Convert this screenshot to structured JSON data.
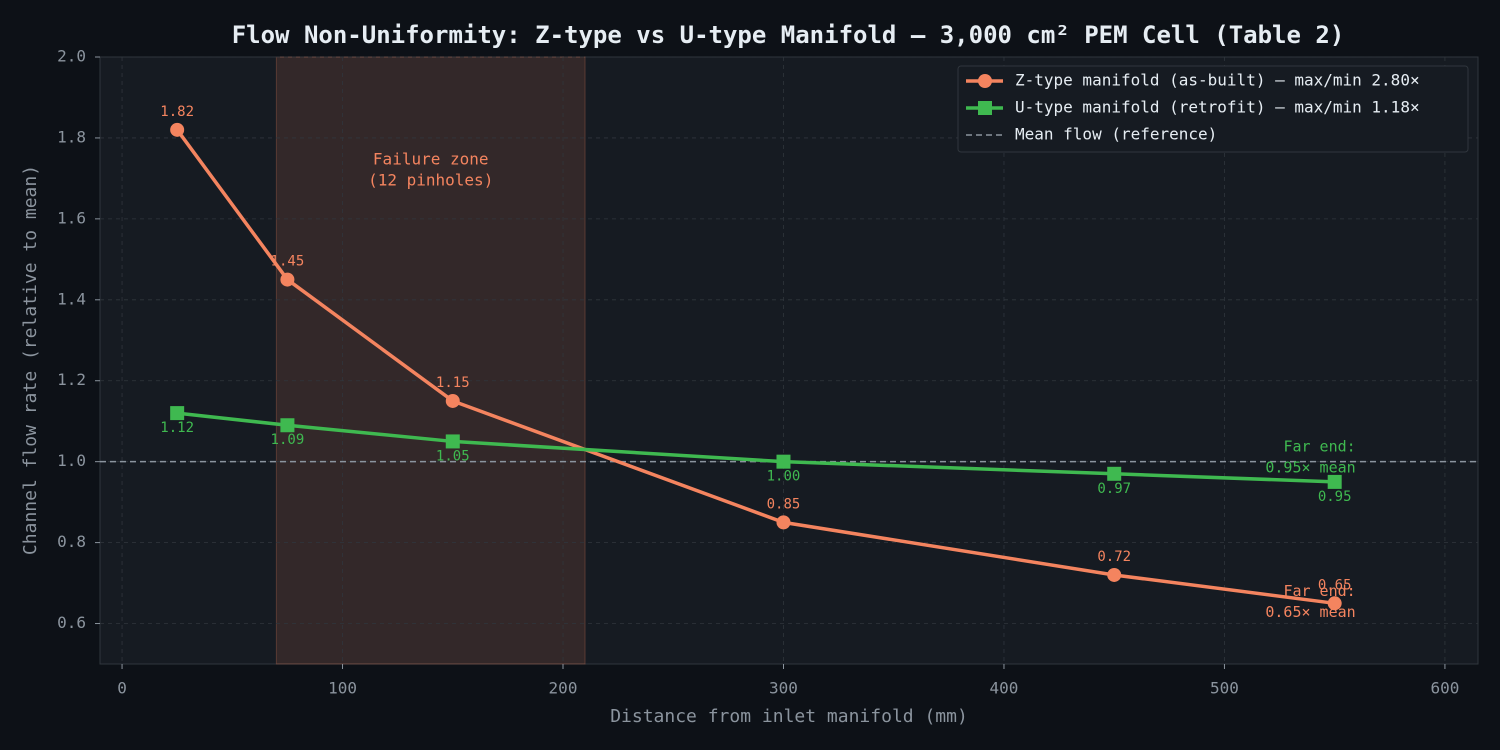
{
  "chart_data": {
    "type": "line",
    "title": "Flow Non-Uniformity: Z-type vs U-type Manifold — 3,000 cm² PEM Cell (Table 2)",
    "x_label": "Distance from inlet manifold (mm)",
    "y_label": "Channel flow rate (relative to mean)",
    "x": [
      25,
      75,
      150,
      300,
      450,
      550
    ],
    "series": [
      {
        "name": "Z-type manifold (as-built) — max/min 2.80×",
        "color": "#f4845f",
        "marker": "circle",
        "values": [
          1.82,
          1.45,
          1.15,
          0.85,
          0.72,
          0.65
        ],
        "annotation": [
          "Far end:",
          "0.65× mean"
        ]
      },
      {
        "name": "U-type manifold (retrofit) — max/min 1.18×",
        "color": "#3fb950",
        "marker": "square",
        "values": [
          1.12,
          1.09,
          1.05,
          1.0,
          0.97,
          0.95
        ],
        "value_labels": [
          "1.12",
          "1.09",
          "1.05",
          "1.00",
          "0.97",
          "0.95"
        ],
        "annotation": [
          "Far end:",
          "0.95× mean"
        ]
      }
    ],
    "reference_line": {
      "value": 1,
      "name": "Mean flow (reference)",
      "color": "#8b949e"
    },
    "shaded_region": {
      "x": [
        70,
        210
      ],
      "label": [
        "Failure zone",
        "(12 pinholes)"
      ],
      "color": "#f4845f"
    },
    "xlim": [
      -10,
      615
    ],
    "ylim": [
      0.5,
      2.0
    ],
    "xticks": [
      0,
      100,
      200,
      300,
      400,
      500,
      600
    ],
    "yticks": [
      0.6,
      0.8,
      {
        "value": 1,
        "label": "1.0"
      },
      1.2,
      1.4,
      1.6,
      1.8,
      {
        "value": 2,
        "label": "2.0"
      }
    ],
    "grid": true,
    "legend": "upper right"
  }
}
